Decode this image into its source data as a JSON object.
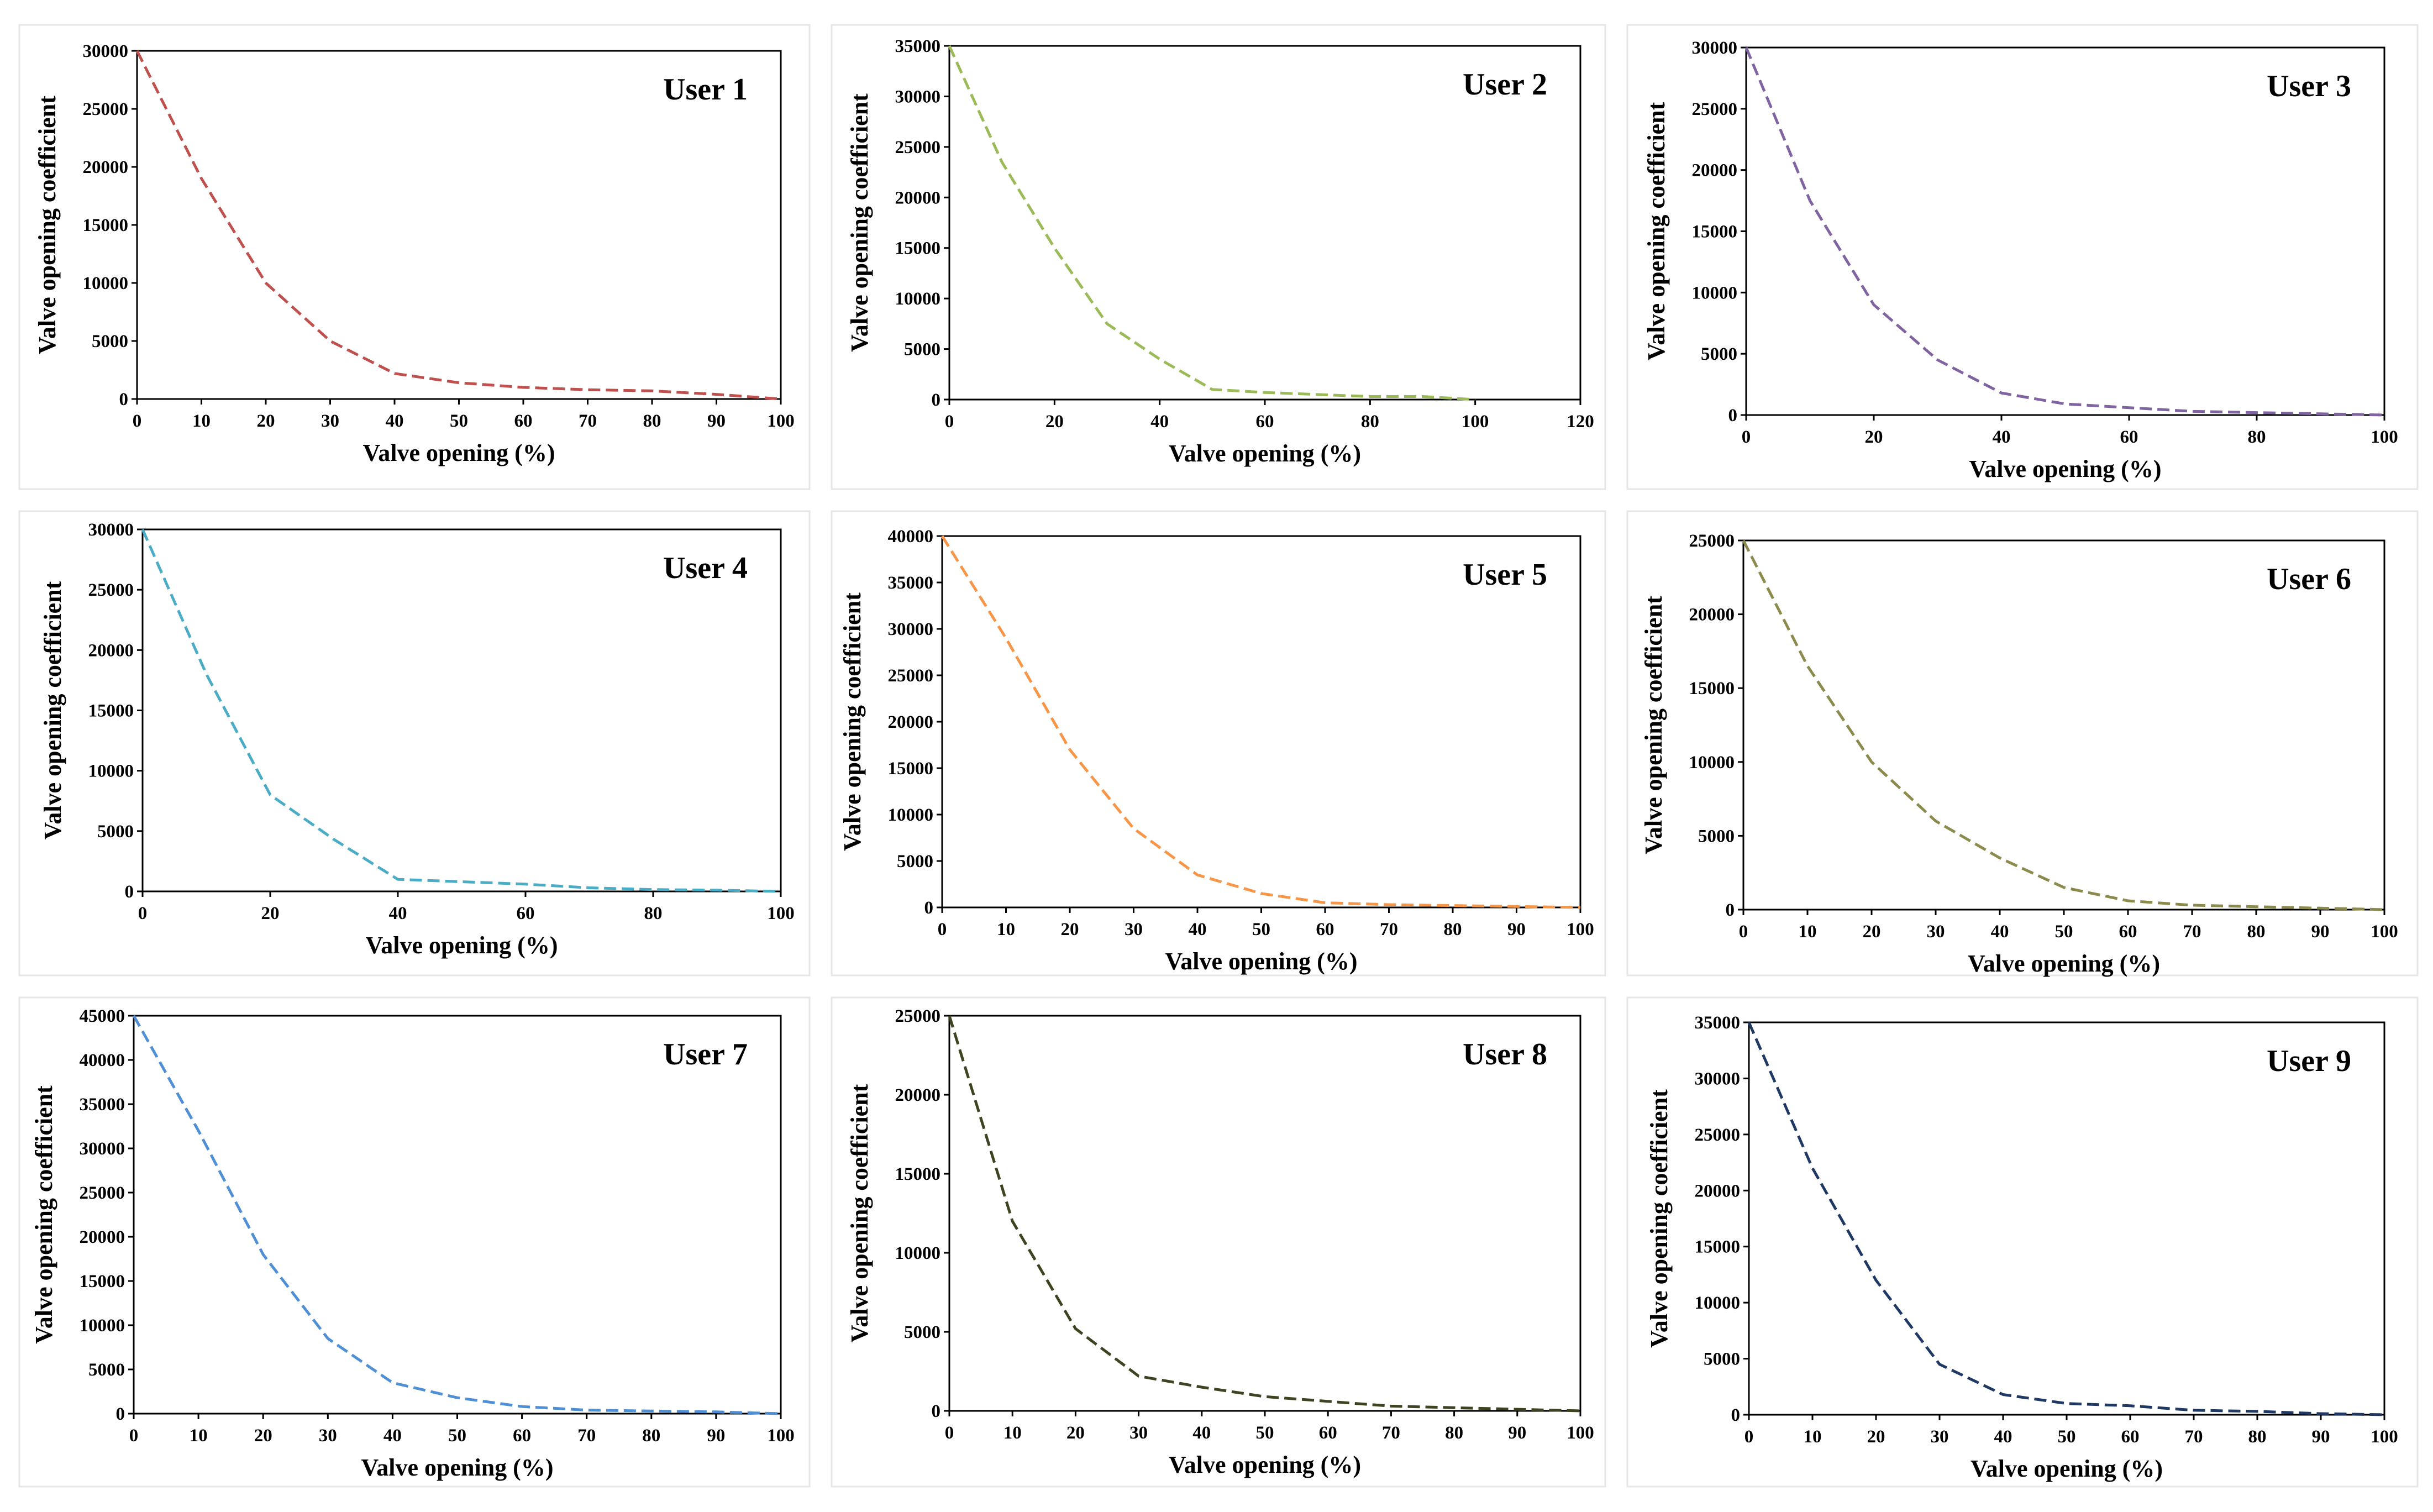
{
  "chart_data": [
    {
      "type": "line",
      "title": "User 1",
      "xlabel": "Valve opening (%)",
      "ylabel": "Valve opening coefficient",
      "xlim": [
        0,
        100
      ],
      "ylim": [
        0,
        30000
      ],
      "xticks": [
        0,
        10,
        20,
        30,
        40,
        50,
        60,
        70,
        80,
        90,
        100
      ],
      "yticks": [
        0,
        5000,
        10000,
        15000,
        20000,
        25000,
        30000
      ],
      "color": "#c0504d",
      "grid": false,
      "series": [
        {
          "name": "User 1",
          "x": [
            0,
            10,
            20,
            30,
            40,
            50,
            60,
            70,
            80,
            90,
            100
          ],
          "y": [
            30000,
            19000,
            10000,
            5000,
            2200,
            1400,
            1000,
            800,
            700,
            400,
            0
          ]
        }
      ]
    },
    {
      "type": "line",
      "title": "User 2",
      "xlabel": "Valve opening (%)",
      "ylabel": "Valve opening coefficient",
      "xlim": [
        0,
        120
      ],
      "ylim": [
        0,
        35000
      ],
      "xticks": [
        0,
        20,
        40,
        60,
        80,
        100,
        120
      ],
      "yticks": [
        0,
        5000,
        10000,
        15000,
        20000,
        25000,
        30000,
        35000
      ],
      "color": "#9bbb59",
      "grid": false,
      "series": [
        {
          "name": "User 2",
          "x": [
            0,
            10,
            20,
            30,
            40,
            50,
            60,
            70,
            80,
            90,
            100
          ],
          "y": [
            35000,
            23500,
            15000,
            7500,
            4000,
            1000,
            700,
            500,
            300,
            300,
            0
          ]
        }
      ]
    },
    {
      "type": "line",
      "title": "User 3",
      "xlabel": "Valve opening (%)",
      "ylabel": "Valve opening coefficient",
      "xlim": [
        0,
        100
      ],
      "ylim": [
        0,
        30000
      ],
      "xticks": [
        0,
        20,
        40,
        60,
        80,
        100
      ],
      "yticks": [
        0,
        5000,
        10000,
        15000,
        20000,
        25000,
        30000
      ],
      "color": "#8064a2",
      "grid": false,
      "series": [
        {
          "name": "User 3",
          "x": [
            0,
            10,
            20,
            30,
            40,
            50,
            60,
            70,
            80,
            90,
            100
          ],
          "y": [
            30000,
            17500,
            9000,
            4500,
            1800,
            900,
            600,
            300,
            200,
            100,
            0
          ]
        }
      ]
    },
    {
      "type": "line",
      "title": "User 4",
      "xlabel": "Valve opening (%)",
      "ylabel": "Valve opening coefficient",
      "xlim": [
        0,
        100
      ],
      "ylim": [
        0,
        30000
      ],
      "xticks": [
        0,
        20,
        40,
        60,
        80,
        100
      ],
      "yticks": [
        0,
        5000,
        10000,
        15000,
        20000,
        25000,
        30000
      ],
      "color": "#4bacc6",
      "grid": false,
      "series": [
        {
          "name": "User 4",
          "x": [
            0,
            10,
            20,
            30,
            40,
            50,
            60,
            70,
            80,
            90,
            100
          ],
          "y": [
            30000,
            18000,
            8000,
            4300,
            1000,
            800,
            600,
            300,
            150,
            100,
            0
          ]
        }
      ]
    },
    {
      "type": "line",
      "title": "User 5",
      "xlabel": "Valve opening (%)",
      "ylabel": "Valve opening coefficient",
      "xlim": [
        0,
        100
      ],
      "ylim": [
        0,
        40000
      ],
      "xticks": [
        0,
        10,
        20,
        30,
        40,
        50,
        60,
        70,
        80,
        90,
        100
      ],
      "yticks": [
        0,
        5000,
        10000,
        15000,
        20000,
        25000,
        30000,
        35000,
        40000
      ],
      "color": "#f79646",
      "grid": false,
      "series": [
        {
          "name": "User 5",
          "x": [
            0,
            10,
            20,
            30,
            40,
            50,
            60,
            70,
            80,
            90,
            100
          ],
          "y": [
            40000,
            29000,
            17000,
            8500,
            3500,
            1500,
            500,
            300,
            200,
            100,
            0
          ]
        }
      ]
    },
    {
      "type": "line",
      "title": "User 6",
      "xlabel": "Valve opening (%)",
      "ylabel": "Valve opening coefficient",
      "xlim": [
        0,
        100
      ],
      "ylim": [
        0,
        25000
      ],
      "xticks": [
        0,
        10,
        20,
        30,
        40,
        50,
        60,
        70,
        80,
        90,
        100
      ],
      "yticks": [
        0,
        5000,
        10000,
        15000,
        20000,
        25000
      ],
      "color": "#8b8b4e",
      "grid": false,
      "series": [
        {
          "name": "User 6",
          "x": [
            0,
            10,
            20,
            30,
            40,
            50,
            60,
            70,
            80,
            90,
            100
          ],
          "y": [
            25000,
            16500,
            10000,
            6000,
            3500,
            1500,
            600,
            300,
            200,
            100,
            0
          ]
        }
      ]
    },
    {
      "type": "line",
      "title": "User 7",
      "xlabel": "Valve opening (%)",
      "ylabel": "Valve opening coefficient",
      "xlim": [
        0,
        100
      ],
      "ylim": [
        0,
        45000
      ],
      "xticks": [
        0,
        10,
        20,
        30,
        40,
        50,
        60,
        70,
        80,
        90,
        100
      ],
      "yticks": [
        0,
        5000,
        10000,
        15000,
        20000,
        25000,
        30000,
        35000,
        40000,
        45000
      ],
      "color": "#4f8fd6",
      "grid": false,
      "series": [
        {
          "name": "User 7",
          "x": [
            0,
            10,
            20,
            30,
            40,
            50,
            60,
            70,
            80,
            90,
            100
          ],
          "y": [
            45000,
            32000,
            18000,
            8500,
            3500,
            1800,
            800,
            400,
            300,
            200,
            0
          ]
        }
      ]
    },
    {
      "type": "line",
      "title": "User 8",
      "xlabel": "Valve opening (%)",
      "ylabel": "Valve opening coefficient",
      "xlim": [
        0,
        100
      ],
      "ylim": [
        0,
        25000
      ],
      "xticks": [
        0,
        10,
        20,
        30,
        40,
        50,
        60,
        70,
        80,
        90,
        100
      ],
      "yticks": [
        0,
        5000,
        10000,
        15000,
        20000,
        25000
      ],
      "color": "#3d4422",
      "grid": false,
      "series": [
        {
          "name": "User 8",
          "x": [
            0,
            10,
            20,
            30,
            40,
            50,
            60,
            70,
            80,
            90,
            100
          ],
          "y": [
            25000,
            12000,
            5200,
            2200,
            1500,
            900,
            600,
            300,
            200,
            100,
            0
          ]
        }
      ]
    },
    {
      "type": "line",
      "title": "User 9",
      "xlabel": "Valve opening (%)",
      "ylabel": "Valve opening coefficient",
      "xlim": [
        0,
        100
      ],
      "ylim": [
        0,
        35000
      ],
      "xticks": [
        0,
        10,
        20,
        30,
        40,
        50,
        60,
        70,
        80,
        90,
        100
      ],
      "yticks": [
        0,
        5000,
        10000,
        15000,
        20000,
        25000,
        30000,
        35000
      ],
      "color": "#1f3864",
      "grid": false,
      "series": [
        {
          "name": "User 9",
          "x": [
            0,
            10,
            20,
            30,
            40,
            50,
            60,
            70,
            80,
            90,
            100
          ],
          "y": [
            35000,
            22000,
            12000,
            4500,
            1800,
            1000,
            800,
            400,
            300,
            100,
            0
          ]
        }
      ]
    }
  ]
}
